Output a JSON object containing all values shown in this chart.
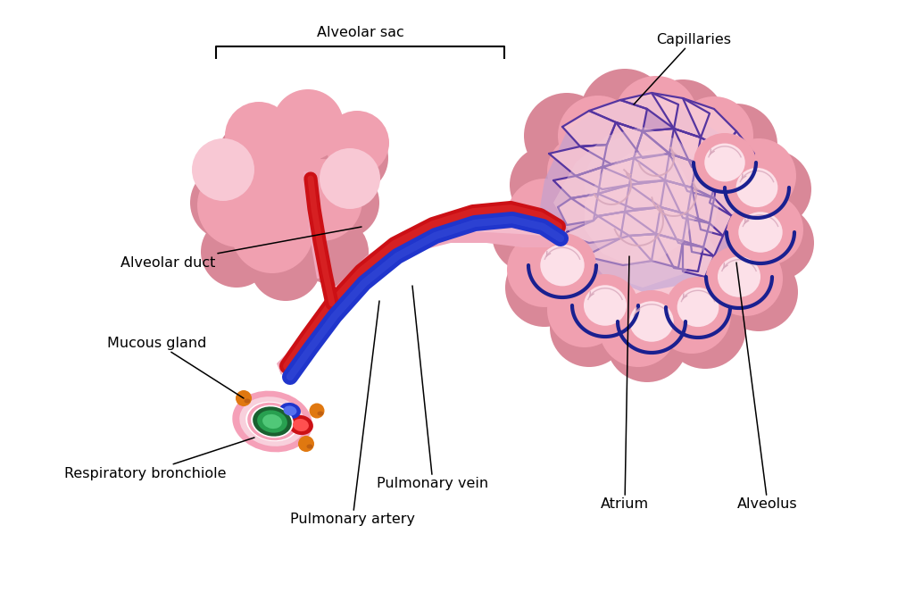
{
  "bg_color": "#ffffff",
  "alv_color": "#f0a0b0",
  "alv_dark": "#d98898",
  "alv_light": "#f8c8d4",
  "alv_lighter": "#fce0e8",
  "cap_purple": "#5535a0",
  "cap_blue_dark": "#1a2090",
  "cap_purple_fill": "#b8a0d8",
  "cap_purple_light": "#c8b0e0",
  "artery_color": "#cc1015",
  "artery_light": "#e03030",
  "vein_color": "#2035cc",
  "vein_light": "#4055dd",
  "mucus_color": "#e07810",
  "mucus_dark": "#c06010",
  "green_outer": "#1a6030",
  "green_inner": "#28a050",
  "pink_tube": "#f0a8bc",
  "pink_tube_light": "#f8c8d8",
  "atrium_fill": "#e8b0c4",
  "atrium_inner": "#f0c8d8",
  "arrow_color": "#d8a8bc",
  "labels": {
    "alveolar_sac": "Alveolar sac",
    "capillaries": "Capillaries",
    "alveolar_duct": "Alveolar duct",
    "mucous_gland": "Mucous gland",
    "resp_bronchiole": "Respiratory bronchiole",
    "pulm_vein": "Pulmonary vein",
    "pulm_artery": "Pulmonary artery",
    "atrium": "Atrium",
    "alveolus": "Alveolus"
  },
  "label_fontsize": 11.5,
  "figsize": [
    10.24,
    6.82
  ],
  "dpi": 100
}
